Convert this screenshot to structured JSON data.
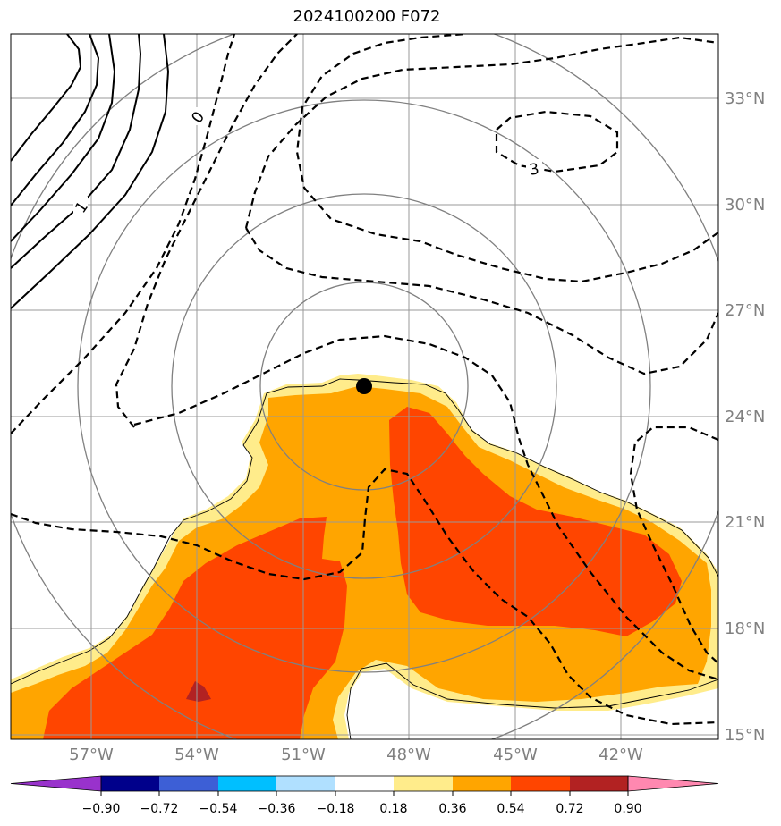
{
  "title": "2024100200 F072",
  "map": {
    "lat_labels": [
      "33°N",
      "30°N",
      "27°N",
      "24°N",
      "21°N",
      "18°N",
      "15°N"
    ],
    "lon_labels": [
      "57°W",
      "54°W",
      "51°W",
      "48°W",
      "45°W",
      "42°W"
    ],
    "contour_labels": [
      "0",
      "1",
      "3"
    ],
    "marker": "storm-center"
  },
  "colorbar": {
    "ticks": [
      "−0.90",
      "−0.72",
      "−0.54",
      "−0.36",
      "−0.18",
      "0.18",
      "0.36",
      "0.54",
      "0.72",
      "0.90"
    ],
    "colors": [
      "#9932cc",
      "#00008b",
      "#3d5fd6",
      "#00bfff",
      "#b0e0ff",
      "#ffffff",
      "#ffec8b",
      "#ffa500",
      "#ff4500",
      "#b22222",
      "#ff88b0"
    ]
  }
}
